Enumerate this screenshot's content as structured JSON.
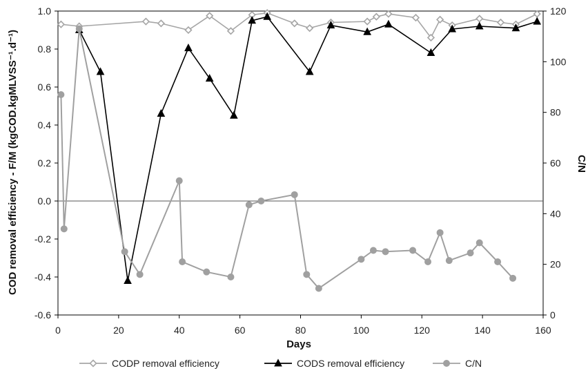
{
  "chart_data": {
    "type": "line",
    "xlabel": "Days",
    "ylabel_left": "COD removal efficiency - F/M (kgCOD.kgMLVSS⁻¹.d⁻¹)",
    "ylabel_right": "C/N",
    "xlim": [
      0,
      160
    ],
    "ylim_left": [
      -0.6,
      1.0
    ],
    "ylim_right": [
      0,
      120
    ],
    "x_ticks": [
      "0",
      "20",
      "40",
      "60",
      "80",
      "100",
      "120",
      "140",
      "160"
    ],
    "y_left_ticks": [
      "1.0",
      "0.8",
      "0.6",
      "0.4",
      "0.2",
      "0.0",
      "-0.2",
      "-0.4",
      "-0.6"
    ],
    "y_right_ticks": [
      "120",
      "100",
      "80",
      "60",
      "40",
      "20",
      "0"
    ],
    "legend_position": "bottom",
    "grid": false,
    "series": [
      {
        "name": "CODP removal efficiency",
        "axis": "left",
        "marker": "diamond",
        "color": "#a6a6a6",
        "points": [
          [
            1,
            0.93
          ],
          [
            7,
            0.92
          ],
          [
            29,
            0.945
          ],
          [
            34,
            0.935
          ],
          [
            43,
            0.9
          ],
          [
            50,
            0.975
          ],
          [
            57,
            0.895
          ],
          [
            64,
            0.98
          ],
          [
            69,
            0.99
          ],
          [
            78,
            0.935
          ],
          [
            83,
            0.91
          ],
          [
            90,
            0.94
          ],
          [
            102,
            0.945
          ],
          [
            105,
            0.97
          ],
          [
            109,
            0.985
          ],
          [
            118,
            0.965
          ],
          [
            123,
            0.86
          ],
          [
            126,
            0.955
          ],
          [
            130,
            0.925
          ],
          [
            139,
            0.96
          ],
          [
            146,
            0.94
          ],
          [
            151,
            0.93
          ],
          [
            158,
            0.985
          ]
        ]
      },
      {
        "name": "CODS removal efficiency",
        "axis": "left",
        "marker": "triangle",
        "color": "#000000",
        "points": [
          [
            7,
            0.9
          ],
          [
            14,
            0.68
          ],
          [
            23,
            -0.42
          ],
          [
            34,
            0.46
          ],
          [
            43,
            0.805
          ],
          [
            50,
            0.645
          ],
          [
            58,
            0.45
          ],
          [
            64,
            0.95
          ],
          [
            69,
            0.97
          ],
          [
            83,
            0.68
          ],
          [
            90,
            0.925
          ],
          [
            102,
            0.89
          ],
          [
            109,
            0.93
          ],
          [
            123,
            0.78
          ],
          [
            130,
            0.905
          ],
          [
            139,
            0.92
          ],
          [
            151,
            0.91
          ],
          [
            158,
            0.945
          ]
        ]
      },
      {
        "name": "C/N",
        "axis": "right",
        "marker": "circle",
        "color": "#a0a0a0",
        "points": [
          [
            1,
            87
          ],
          [
            2,
            34
          ],
          [
            7,
            113
          ],
          [
            22,
            25
          ],
          [
            27,
            16
          ],
          [
            40,
            53
          ],
          [
            41,
            21
          ],
          [
            49,
            17
          ],
          [
            57,
            15
          ],
          [
            63,
            43.5
          ],
          [
            67,
            45
          ],
          [
            78,
            47.5
          ],
          [
            82,
            16
          ],
          [
            86,
            10.5
          ],
          [
            100,
            22
          ],
          [
            104,
            25.5
          ],
          [
            108,
            25
          ],
          [
            117,
            25.5
          ],
          [
            122,
            21
          ],
          [
            126,
            32.5
          ],
          [
            129,
            21.5
          ],
          [
            136,
            24.5
          ],
          [
            139,
            28.5
          ],
          [
            145,
            21
          ],
          [
            150,
            14.5
          ]
        ]
      }
    ]
  }
}
